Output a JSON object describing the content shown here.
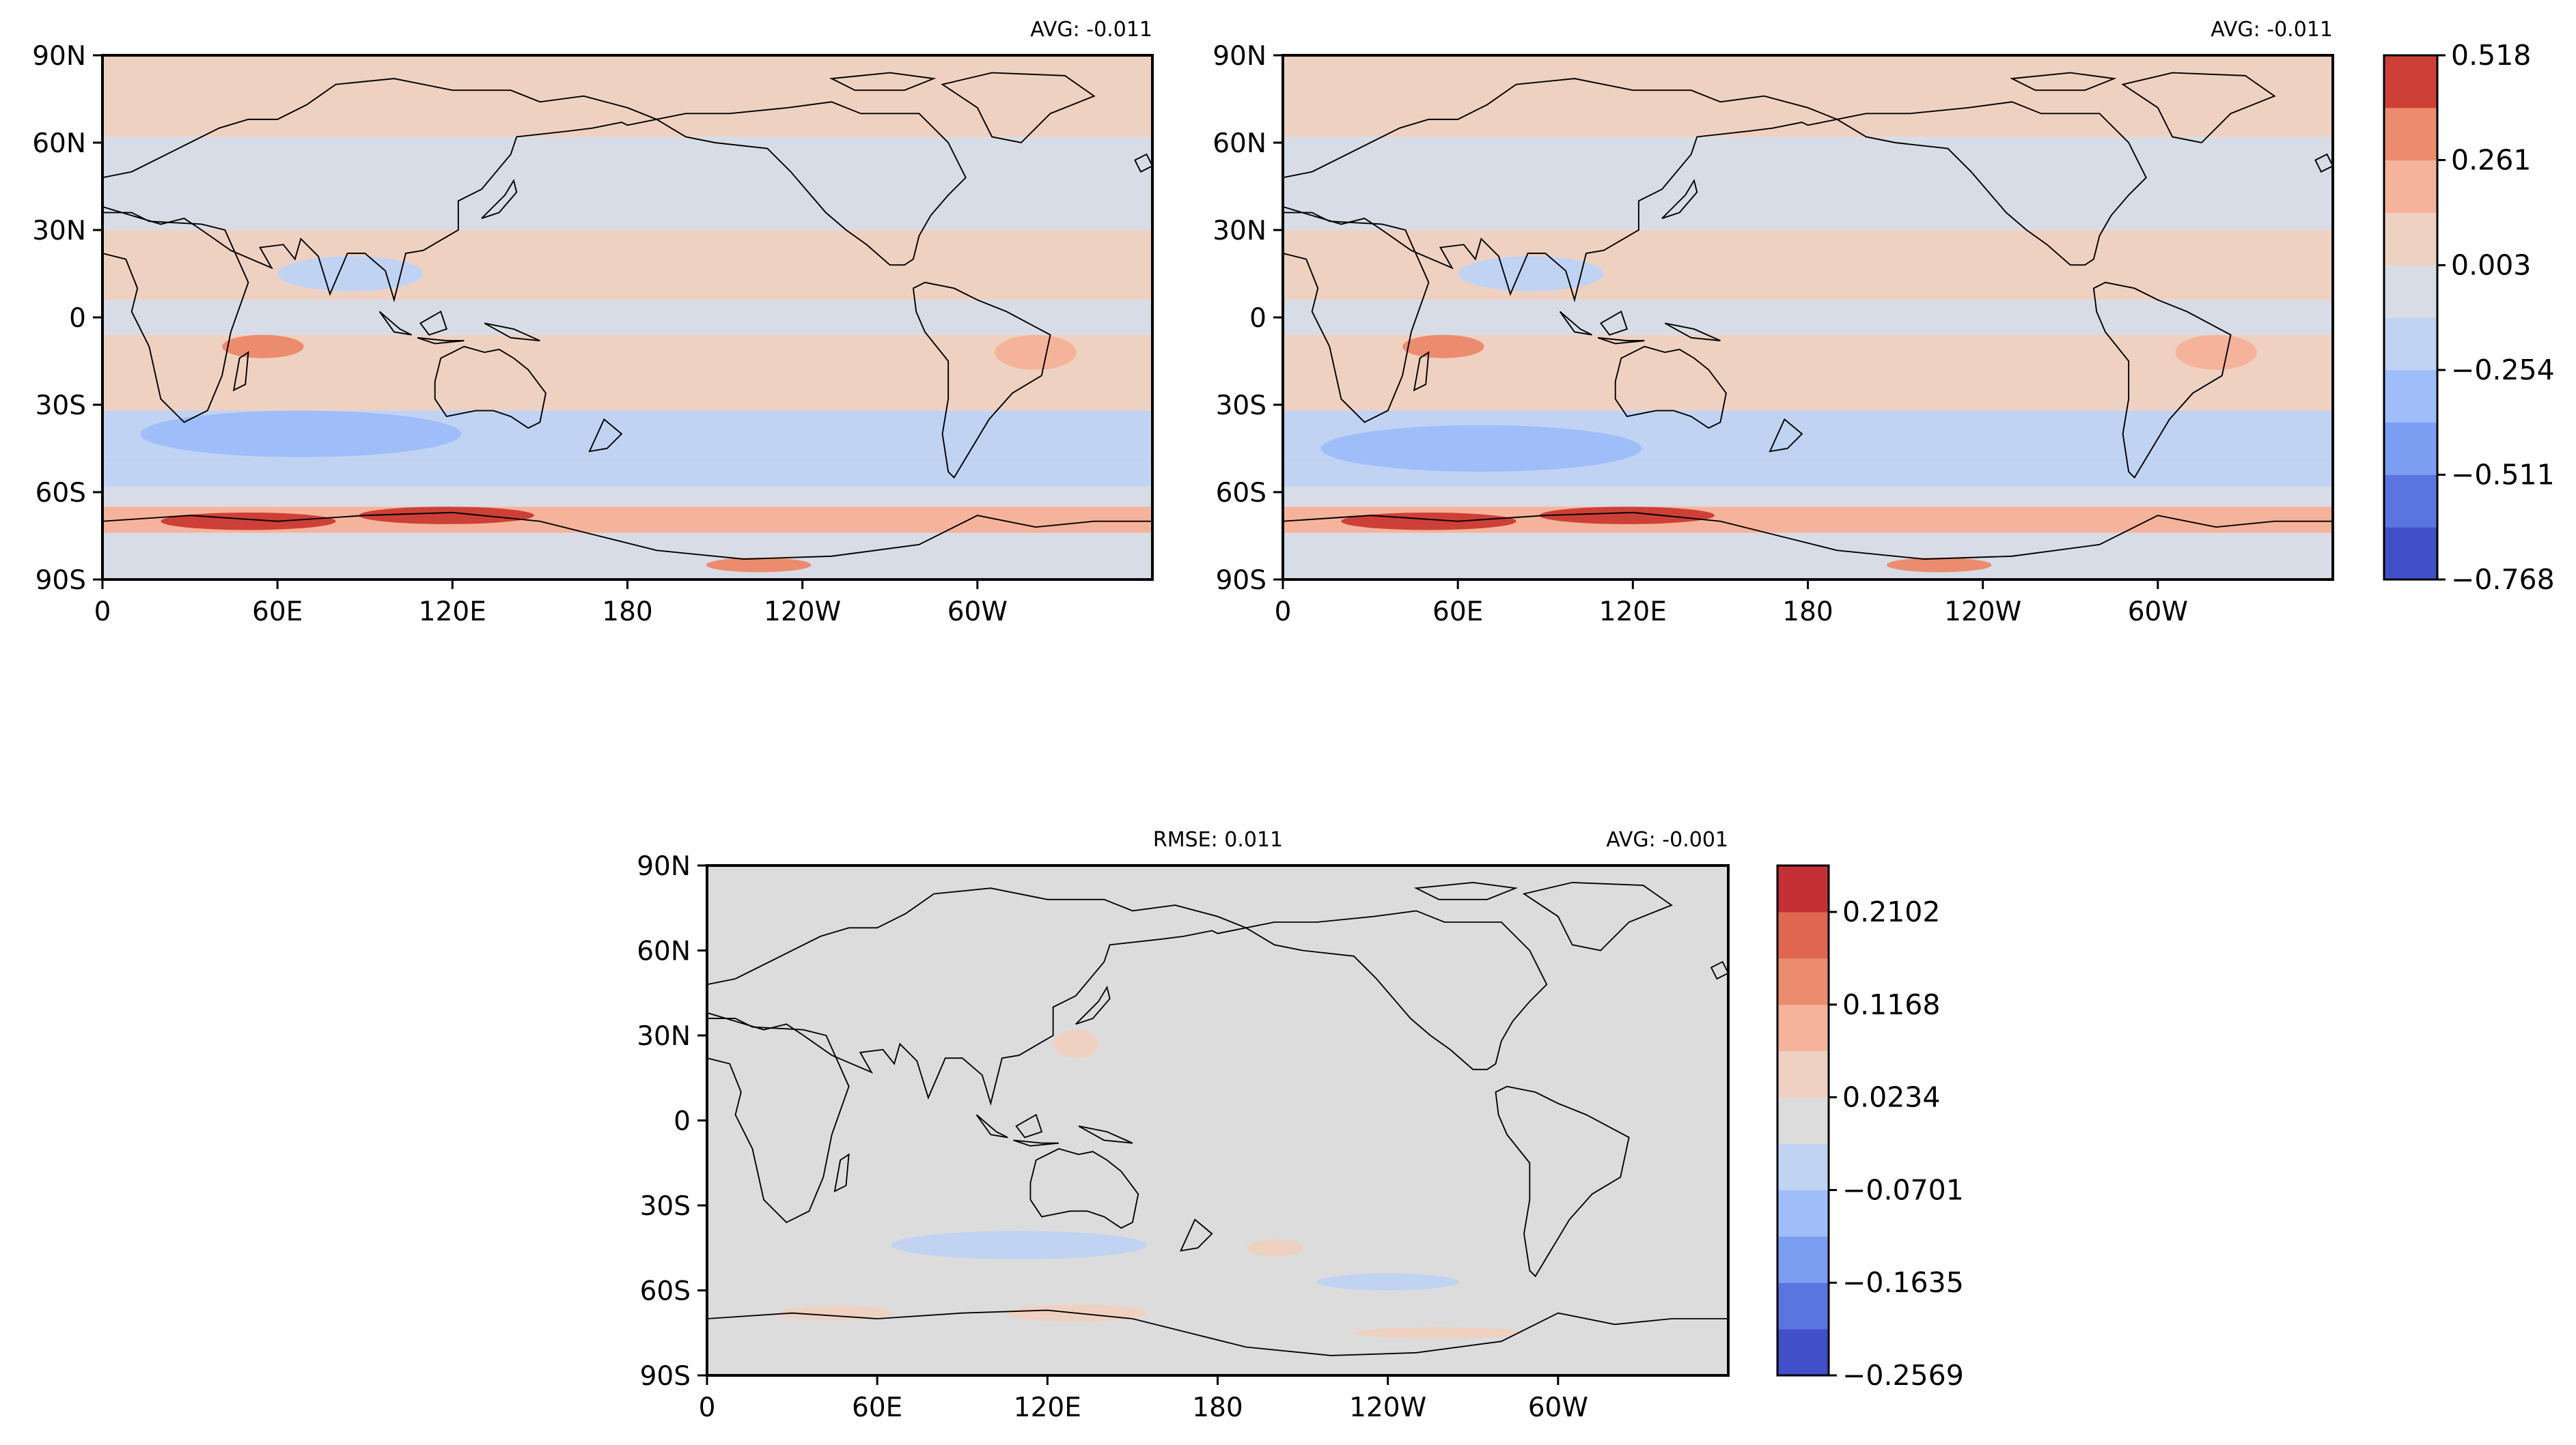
{
  "chart_data": [
    {
      "type": "heatmap",
      "panel": "top-left",
      "title": "",
      "annotations": {
        "avg_label": "AVG: -0.011"
      },
      "x_ticks": [
        "0",
        "60E",
        "120E",
        "180",
        "120W",
        "60W"
      ],
      "y_ticks": [
        "90N",
        "60N",
        "30N",
        "0",
        "30S",
        "60S",
        "90S"
      ],
      "xlim": [
        0,
        360
      ],
      "ylim": [
        -90,
        90
      ],
      "colorbar": "shared-top",
      "zonal_bands": [
        {
          "lat": [
            62,
            90
          ],
          "level": 0.05
        },
        {
          "lat": [
            30,
            62
          ],
          "level": -0.05
        },
        {
          "lat": [
            6,
            30
          ],
          "level": 0.05
        },
        {
          "lat": [
            -6,
            6
          ],
          "level": -0.06
        },
        {
          "lat": [
            -32,
            -6
          ],
          "level": 0.06
        },
        {
          "lat": [
            -48,
            -32
          ],
          "level": -0.15
        },
        {
          "lat": [
            -58,
            -48
          ],
          "level": -0.2
        },
        {
          "lat": [
            -65,
            -58
          ],
          "level": -0.08
        },
        {
          "lat": [
            -74,
            -65
          ],
          "level": 0.2
        },
        {
          "lat": [
            -90,
            -74
          ],
          "level": -0.04
        }
      ],
      "features": [
        {
          "lon": 85,
          "lat": 15,
          "rlon": 25,
          "rlat": 6,
          "level": -0.2
        },
        {
          "lon": 68,
          "lat": -40,
          "rlon": 55,
          "rlat": 8,
          "level": -0.3
        },
        {
          "lon": 55,
          "lat": -10,
          "rlon": 14,
          "rlat": 4,
          "level": 0.3
        },
        {
          "lon": 50,
          "lat": -70,
          "rlon": 30,
          "rlat": 3,
          "level": 0.4
        },
        {
          "lon": 118,
          "lat": -68,
          "rlon": 30,
          "rlat": 3,
          "level": 0.45
        },
        {
          "lon": 225,
          "lat": -85,
          "rlon": 18,
          "rlat": 2.5,
          "level": 0.3
        },
        {
          "lon": 320,
          "lat": -12,
          "rlon": 14,
          "rlat": 6,
          "level": 0.25
        }
      ]
    },
    {
      "type": "heatmap",
      "panel": "top-right",
      "title": "",
      "annotations": {
        "avg_label": "AVG: -0.011"
      },
      "x_ticks": [
        "0",
        "60E",
        "120E",
        "180",
        "120W",
        "60W"
      ],
      "y_ticks": [
        "90N",
        "60N",
        "30N",
        "0",
        "30S",
        "60S",
        "90S"
      ],
      "xlim": [
        0,
        360
      ],
      "ylim": [
        -90,
        90
      ],
      "colorbar": "shared-top",
      "zonal_bands": [
        {
          "lat": [
            62,
            90
          ],
          "level": 0.05
        },
        {
          "lat": [
            30,
            62
          ],
          "level": -0.05
        },
        {
          "lat": [
            6,
            30
          ],
          "level": 0.05
        },
        {
          "lat": [
            -6,
            6
          ],
          "level": -0.06
        },
        {
          "lat": [
            -32,
            -6
          ],
          "level": 0.06
        },
        {
          "lat": [
            -48,
            -32
          ],
          "level": -0.15
        },
        {
          "lat": [
            -58,
            -48
          ],
          "level": -0.2
        },
        {
          "lat": [
            -65,
            -58
          ],
          "level": -0.08
        },
        {
          "lat": [
            -74,
            -65
          ],
          "level": 0.2
        },
        {
          "lat": [
            -90,
            -74
          ],
          "level": -0.04
        }
      ],
      "features": [
        {
          "lon": 85,
          "lat": 15,
          "rlon": 25,
          "rlat": 6,
          "level": -0.2
        },
        {
          "lon": 68,
          "lat": -45,
          "rlon": 55,
          "rlat": 8,
          "level": -0.3
        },
        {
          "lon": 55,
          "lat": -10,
          "rlon": 14,
          "rlat": 4,
          "level": 0.3
        },
        {
          "lon": 50,
          "lat": -70,
          "rlon": 30,
          "rlat": 3,
          "level": 0.4
        },
        {
          "lon": 118,
          "lat": -68,
          "rlon": 30,
          "rlat": 3,
          "level": 0.45
        },
        {
          "lon": 225,
          "lat": -85,
          "rlon": 18,
          "rlat": 2.5,
          "level": 0.3
        },
        {
          "lon": 320,
          "lat": -12,
          "rlon": 14,
          "rlat": 6,
          "level": 0.25
        }
      ]
    },
    {
      "type": "heatmap",
      "panel": "bottom-difference",
      "title": "",
      "annotations": {
        "rmse_label": "RMSE: 0.011",
        "avg_label": "AVG: -0.001"
      },
      "x_ticks": [
        "0",
        "60E",
        "120E",
        "180",
        "120W",
        "60W"
      ],
      "y_ticks": [
        "90N",
        "60N",
        "30N",
        "0",
        "30S",
        "60S",
        "90S"
      ],
      "xlim": [
        0,
        360
      ],
      "ylim": [
        -90,
        90
      ],
      "colorbar": "difference",
      "zonal_bands": [
        {
          "lat": [
            -90,
            90
          ],
          "level": 0.0
        }
      ],
      "features": [
        {
          "lon": 110,
          "lat": -44,
          "rlon": 45,
          "rlat": 5,
          "level": -0.06
        },
        {
          "lon": 240,
          "lat": -57,
          "rlon": 25,
          "rlat": 3,
          "level": -0.05
        },
        {
          "lon": 200,
          "lat": -45,
          "rlon": 10,
          "rlat": 3,
          "level": 0.04
        },
        {
          "lon": 130,
          "lat": -68,
          "rlon": 25,
          "rlat": 3,
          "level": 0.05
        },
        {
          "lon": 45,
          "lat": -68,
          "rlon": 20,
          "rlat": 2.5,
          "level": 0.04
        },
        {
          "lon": 258,
          "lat": -75,
          "rlon": 30,
          "rlat": 2,
          "level": 0.04
        },
        {
          "lon": 130,
          "lat": 27,
          "rlon": 8,
          "rlat": 5,
          "level": 0.04
        }
      ]
    }
  ],
  "colorbars": {
    "shared-top": {
      "tick_labels": [
        "0.518",
        "0.261",
        "0.003",
        "−0.254",
        "−0.511",
        "−0.768"
      ],
      "tick_values": [
        0.518,
        0.261,
        0.003,
        -0.254,
        -0.511,
        -0.768
      ],
      "min": -0.768,
      "max": 0.518,
      "levels": 11,
      "colors": [
        "#3f50c8",
        "#5a75e0",
        "#7b9ef2",
        "#9fbdf9",
        "#c1d3f3",
        "#d8dce6",
        "#efd1c2",
        "#f6b39b",
        "#ec8c6e",
        "#cd4038"
      ]
    },
    "difference": {
      "tick_labels": [
        "0.2102",
        "0.1168",
        "0.0234",
        "−0.0701",
        "−0.1635",
        "−0.2569"
      ],
      "tick_values": [
        0.2102,
        0.1168,
        0.0234,
        -0.0701,
        -0.1635,
        -0.2569
      ],
      "min": -0.2569,
      "max": 0.257,
      "levels": 11,
      "colors": [
        "#3f50c8",
        "#5a75e0",
        "#7b9ef2",
        "#9fbdf9",
        "#c1d3f3",
        "#dcdcdc",
        "#efd1c2",
        "#f6b39b",
        "#ec8c6e",
        "#e06650",
        "#c43035"
      ]
    }
  }
}
